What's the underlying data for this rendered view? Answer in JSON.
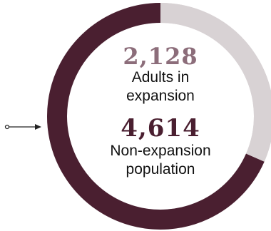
{
  "colors": {
    "highlight": "#4a1f30",
    "remainder": "#d8d2d4",
    "highlight_text": "#8c6d7a",
    "main_text": "#4a1f30"
  },
  "chart_data": {
    "type": "pie",
    "variant": "donut",
    "title": "",
    "slices": [
      {
        "label": "Adults in expansion",
        "value": 2128,
        "display": "2,128"
      },
      {
        "label": "Non-expansion population",
        "value": 4614,
        "display": "4,614"
      }
    ],
    "annotations": {
      "adults_value": "2,128",
      "adults_label_line1": "Adults in",
      "adults_label_line2": "expansion",
      "non_value": "4,614",
      "non_label_line1": "Non-expansion",
      "non_label_line2": "population"
    },
    "pointer": "arrow pointing to ring from left"
  }
}
